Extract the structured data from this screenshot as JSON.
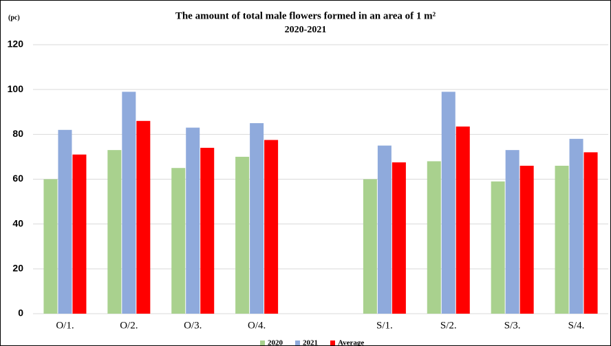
{
  "chart_data": {
    "type": "bar",
    "title": "The amount of total male flowers formed in an area of 1 m²",
    "subtitle": "2020-2021",
    "y_label": "(pc)",
    "categories": [
      "O/1.",
      "O/2.",
      "O/3.",
      "O/4.",
      null,
      "S/1.",
      "S/2.",
      "S/3.",
      "S/4."
    ],
    "series": [
      {
        "name": "2020",
        "color": "#a9d18e",
        "values": [
          60,
          73,
          65,
          70,
          null,
          60,
          68,
          59,
          66
        ]
      },
      {
        "name": "2021",
        "color": "#8faadc",
        "values": [
          82,
          99,
          83,
          85,
          null,
          75,
          99,
          73,
          78
        ]
      },
      {
        "name": "Average",
        "color": "#ff0000",
        "values": [
          71,
          86,
          74,
          77.5,
          null,
          67.5,
          83.5,
          66,
          72
        ]
      }
    ],
    "ylim": [
      0,
      120
    ],
    "yticks": [
      0,
      20,
      40,
      60,
      80,
      100,
      120
    ],
    "grid": true,
    "legend": "bottom"
  }
}
